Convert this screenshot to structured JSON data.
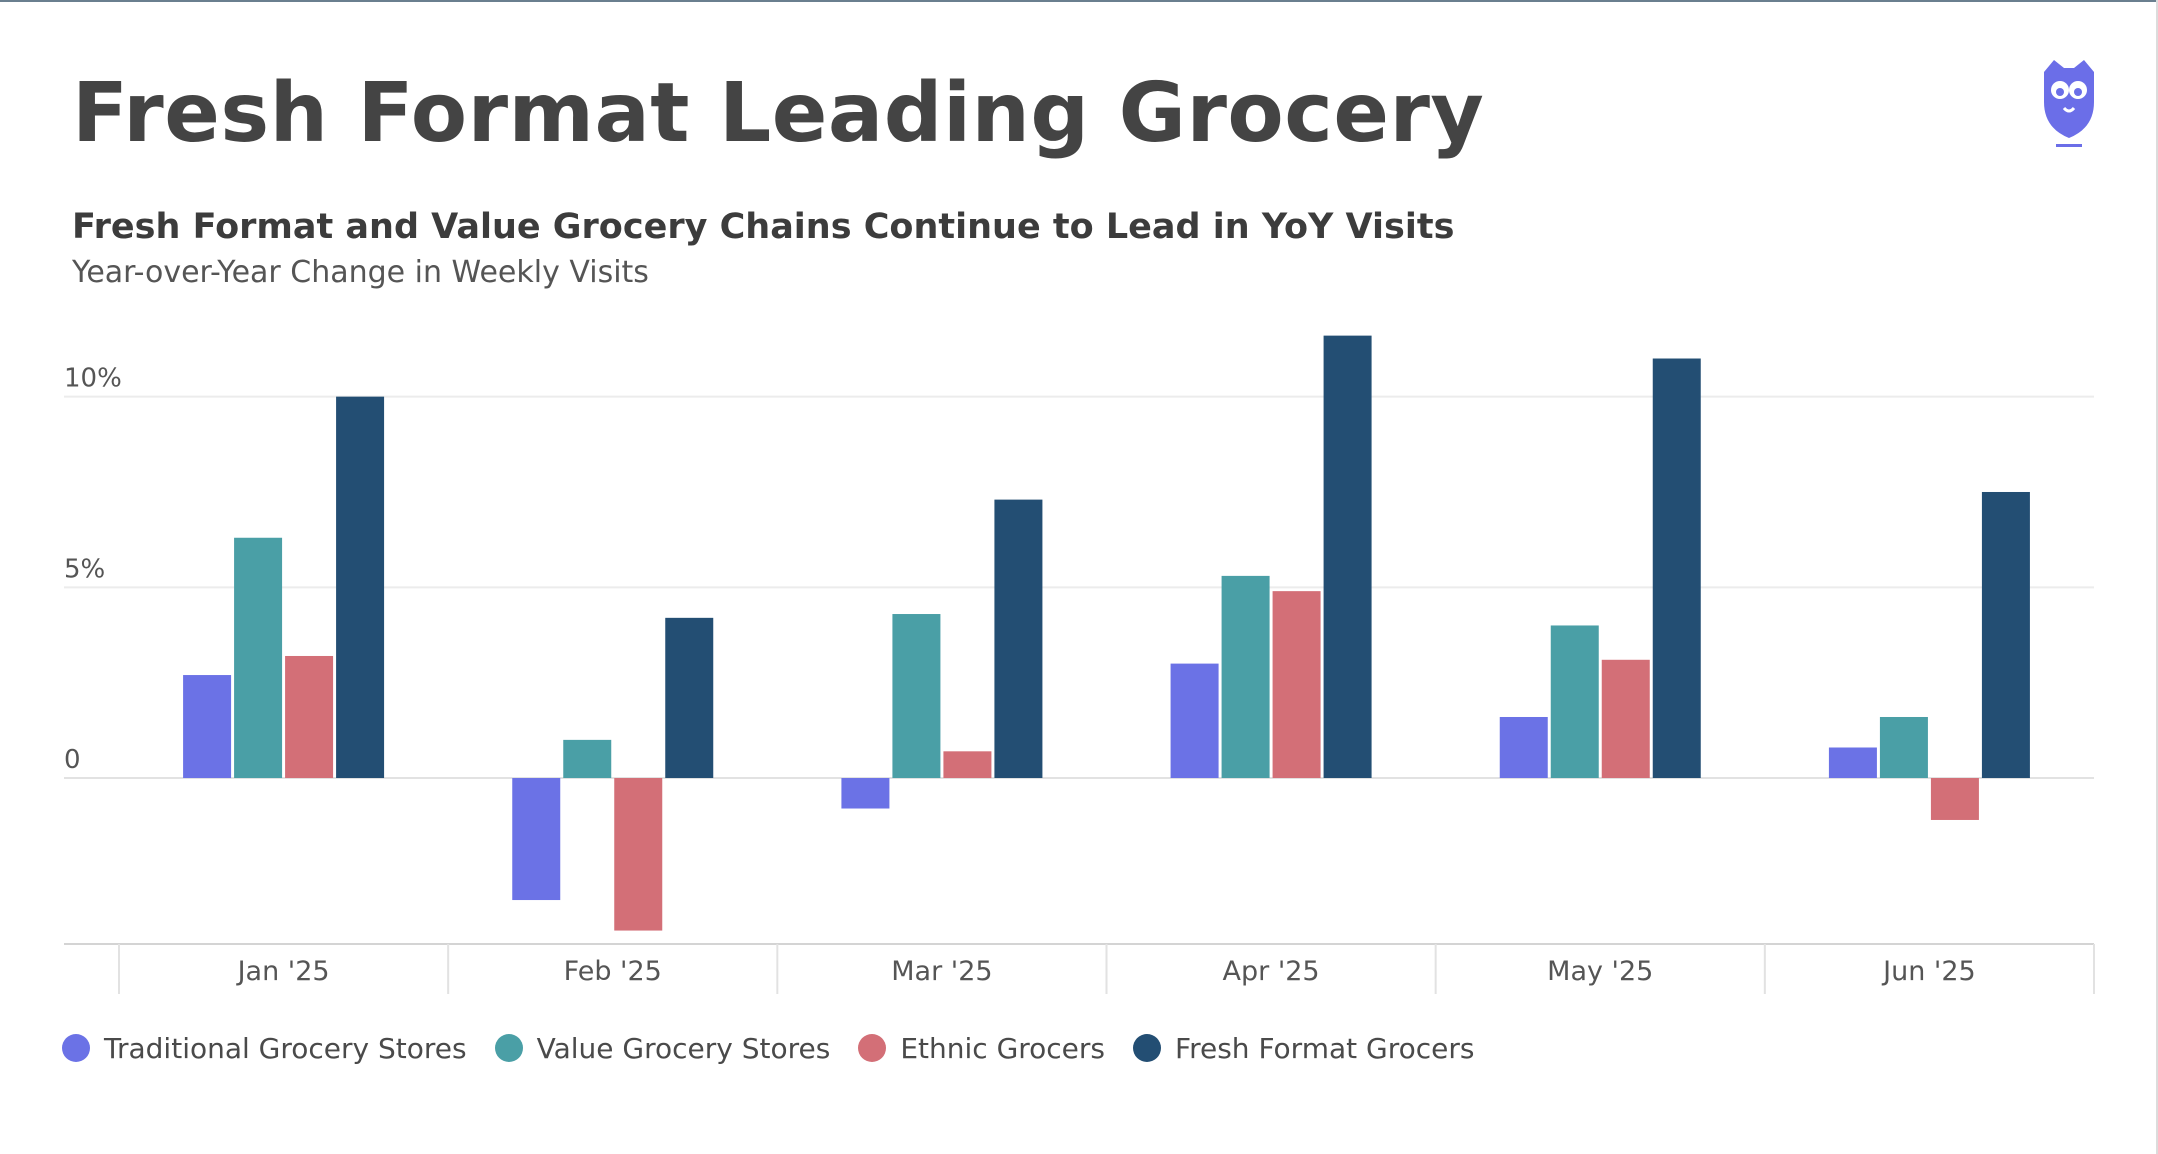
{
  "header": {
    "title": "Fresh Format Leading Grocery"
  },
  "logo": {
    "icon": "owl-logo-icon",
    "color": "#6b6ee8"
  },
  "chart_data": {
    "type": "bar",
    "title": "Fresh Format and Value Grocery Chains Continue to Lead in YoY Visits",
    "subtitle": "Year-over-Year Change in Weekly Visits",
    "xlabel": "",
    "ylabel": "",
    "categories": [
      "Jan '25",
      "Feb '25",
      "Mar '25",
      "Apr '25",
      "May '25",
      "Jun '25"
    ],
    "ylim": [
      -4.3,
      11.8
    ],
    "yticks": [
      {
        "value": 0,
        "label": "0"
      },
      {
        "value": 5,
        "label": "5%"
      },
      {
        "value": 10,
        "label": "10%"
      }
    ],
    "grid": true,
    "legend_position": "bottom-left",
    "series": [
      {
        "name": "Traditional Grocery Stores",
        "color": "#6b72e6",
        "values": [
          2.7,
          -3.2,
          -0.8,
          3.0,
          1.6,
          0.8
        ]
      },
      {
        "name": "Value Grocery Stores",
        "color": "#4a9fa6",
        "values": [
          6.3,
          1.0,
          4.3,
          5.3,
          4.0,
          1.6
        ]
      },
      {
        "name": "Ethnic Grocers",
        "color": "#d36f77",
        "values": [
          3.2,
          -4.0,
          0.7,
          4.9,
          3.1,
          -1.1
        ]
      },
      {
        "name": "Fresh Format Grocers",
        "color": "#234e73",
        "values": [
          10.0,
          4.2,
          7.3,
          11.6,
          11.0,
          7.5
        ]
      }
    ]
  }
}
